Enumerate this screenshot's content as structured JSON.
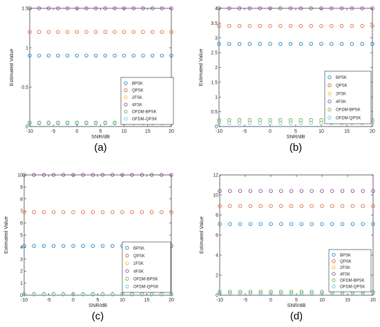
{
  "colors": {
    "BPSK": "#0072BD",
    "QPSK": "#D95319",
    "2FSK": "#EDB120",
    "4FSK": "#7E2F8E",
    "OFDM-BPSK": "#77AC30",
    "OFDM-QPSK": "#4DBEEE"
  },
  "chart_data": [
    {
      "id": "a",
      "type": "scatter",
      "panel_label": "(a)",
      "xlabel": "SNR/dB",
      "ylabel": "Estimated Value",
      "xlim": [
        -10,
        20
      ],
      "ylim": [
        0,
        1.5
      ],
      "xticks": [
        -10,
        -5,
        0,
        5,
        10,
        15,
        20
      ],
      "yticks": [
        0,
        0.5,
        1,
        1.5
      ],
      "ytick_labels": [
        "0",
        "0.5",
        "1",
        "1.5"
      ],
      "legend_position": "lower-right",
      "x": [
        -10,
        -8,
        -6,
        -4,
        -2,
        0,
        2,
        4,
        6,
        8,
        10,
        12,
        14,
        16,
        18,
        20
      ],
      "series": [
        {
          "name": "BPSK",
          "value": 0.9
        },
        {
          "name": "QPSK",
          "value": 1.2
        },
        {
          "name": "2FSK",
          "value": 0.05
        },
        {
          "name": "4FSK",
          "value": 1.5
        },
        {
          "name": "OFDM-BPSK",
          "value": 0.05
        },
        {
          "name": "OFDM-QPSK",
          "value": 0.04
        }
      ]
    },
    {
      "id": "b",
      "type": "scatter",
      "panel_label": "(b)",
      "xlabel": "SNR/dB",
      "ylabel": "Estimated Value",
      "xlim": [
        -10,
        20
      ],
      "ylim": [
        0,
        4
      ],
      "xticks": [
        -10,
        -5,
        0,
        5,
        10,
        15,
        20
      ],
      "yticks": [
        0,
        0.5,
        1,
        1.5,
        2,
        2.5,
        3,
        3.5,
        4
      ],
      "ytick_labels": [
        "0",
        "0.5",
        "1",
        "1.5",
        "2",
        "2.5",
        "3",
        "3.5",
        "4"
      ],
      "legend_position": "right",
      "x": [
        -10,
        -8,
        -6,
        -4,
        -2,
        0,
        2,
        4,
        6,
        8,
        10,
        12,
        14,
        16,
        18,
        20
      ],
      "series": [
        {
          "name": "BPSK",
          "value": 2.8
        },
        {
          "name": "QPSK",
          "value": 3.4
        },
        {
          "name": "2FSK",
          "value": 0.22
        },
        {
          "name": "4FSK",
          "value": 4.0
        },
        {
          "name": "OFDM-BPSK",
          "value": 0.22
        },
        {
          "name": "OFDM-QPSK",
          "value": 0.12
        }
      ]
    },
    {
      "id": "c",
      "type": "scatter",
      "panel_label": "(c)",
      "xlabel": "SNR/dB",
      "ylabel": "Estimated Value",
      "xlim": [
        -10,
        20
      ],
      "ylim": [
        0,
        10
      ],
      "xticks": [
        -10,
        -5,
        0,
        5,
        10,
        15,
        20
      ],
      "yticks": [
        0,
        1,
        2,
        3,
        4,
        5,
        6,
        7,
        8,
        9,
        10
      ],
      "ytick_labels": [
        "0",
        "1",
        "2",
        "3",
        "4",
        "5",
        "6",
        "7",
        "8",
        "9",
        "10"
      ],
      "legend_position": "lower-right",
      "x": [
        -10,
        -8,
        -6,
        -4,
        -2,
        0,
        2,
        4,
        6,
        8,
        10,
        12,
        14,
        16,
        18,
        20
      ],
      "series": [
        {
          "name": "BPSK",
          "value": 4.1
        },
        {
          "name": "QPSK",
          "value": 6.9
        },
        {
          "name": "2FSK",
          "value": 0.1
        },
        {
          "name": "4FSK",
          "value": 10.0
        },
        {
          "name": "OFDM-BPSK",
          "value": 0.1
        },
        {
          "name": "OFDM-QPSK",
          "value": 0.06
        }
      ]
    },
    {
      "id": "d",
      "type": "scatter",
      "panel_label": "(d)",
      "xlabel": "SNR/dB",
      "ylabel": "Estimated Value",
      "xlim": [
        -10,
        20
      ],
      "ylim": [
        0,
        12
      ],
      "xticks": [
        -10,
        -5,
        0,
        5,
        10,
        15,
        20
      ],
      "yticks": [
        0,
        2,
        4,
        6,
        8,
        10,
        12
      ],
      "ytick_labels": [
        "0",
        "2",
        "4",
        "6",
        "8",
        "10",
        "12"
      ],
      "legend_position": "lower-right",
      "x": [
        -10,
        -8,
        -6,
        -4,
        -2,
        0,
        2,
        4,
        6,
        8,
        10,
        12,
        14,
        16,
        18,
        20
      ],
      "series": [
        {
          "name": "BPSK",
          "value": 7.1
        },
        {
          "name": "QPSK",
          "value": 8.9
        },
        {
          "name": "2FSK",
          "value": 0.35
        },
        {
          "name": "4FSK",
          "value": 10.4
        },
        {
          "name": "OFDM-BPSK",
          "value": 0.35
        },
        {
          "name": "OFDM-QPSK",
          "value": 0.2
        }
      ]
    }
  ]
}
